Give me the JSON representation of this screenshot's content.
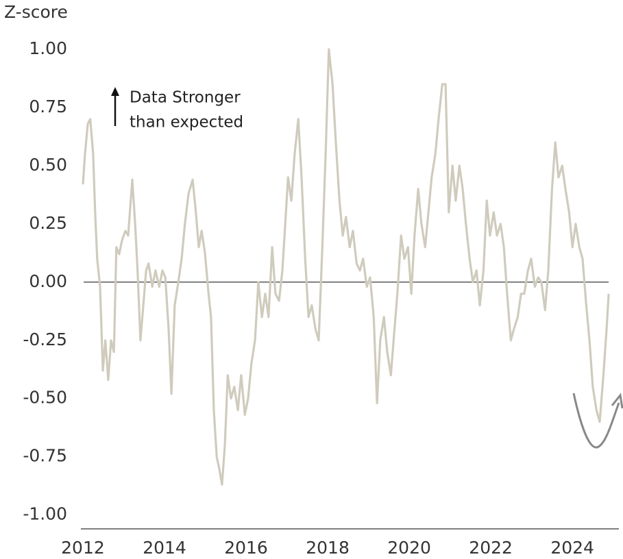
{
  "chart_data": {
    "type": "line",
    "y_label": "Z-score",
    "annotation": [
      "Data Stronger",
      "than expected"
    ],
    "xlim": [
      2011.95,
      2025.14
    ],
    "xticks": [
      2012,
      2014,
      2016,
      2018,
      2020,
      2022,
      2024
    ],
    "ylim": [
      -1.06,
      1.1
    ],
    "yticks": [
      {
        "value": 1,
        "label": "1.00"
      },
      {
        "value": 0.75,
        "label": "0.75"
      },
      {
        "value": 0.5,
        "label": "0.50"
      },
      {
        "value": 0.25,
        "label": "0.25"
      },
      {
        "value": 0,
        "label": "0.00"
      },
      {
        "value": -0.25,
        "label": "-0.25"
      },
      {
        "value": -0.5,
        "label": "-0.50"
      },
      {
        "value": -0.75,
        "label": "-0.75"
      },
      {
        "value": -1,
        "label": "-1.00"
      }
    ],
    "grid": false,
    "zero_line": true,
    "series": [
      {
        "color": "#cfcbbd",
        "x": [
          2012.0,
          2012.05,
          2012.12,
          2012.18,
          2012.25,
          2012.3,
          2012.35,
          2012.42,
          2012.49,
          2012.55,
          2012.62,
          2012.69,
          2012.76,
          2012.82,
          2012.89,
          2012.96,
          2013.04,
          2013.11,
          2013.21,
          2013.28,
          2013.34,
          2013.41,
          2013.48,
          2013.55,
          2013.61,
          2013.7,
          2013.78,
          2013.87,
          2013.95,
          2014.02,
          2014.1,
          2014.17,
          2014.25,
          2014.34,
          2014.42,
          2014.5,
          2014.59,
          2014.69,
          2014.77,
          2014.84,
          2014.91,
          2014.99,
          2015.08,
          2015.14,
          2015.21,
          2015.28,
          2015.34,
          2015.41,
          2015.48,
          2015.55,
          2015.63,
          2015.71,
          2015.8,
          2015.88,
          2015.97,
          2016.05,
          2016.13,
          2016.22,
          2016.3,
          2016.39,
          2016.47,
          2016.55,
          2016.64,
          2016.72,
          2016.81,
          2016.89,
          2016.96,
          2017.03,
          2017.11,
          2017.19,
          2017.28,
          2017.36,
          2017.45,
          2017.53,
          2017.61,
          2017.7,
          2017.78,
          2017.87,
          2017.95,
          2018.03,
          2018.12,
          2018.2,
          2018.29,
          2018.37,
          2018.45,
          2018.54,
          2018.62,
          2018.71,
          2018.79,
          2018.87,
          2018.96,
          2019.04,
          2019.13,
          2019.21,
          2019.29,
          2019.38,
          2019.46,
          2019.55,
          2019.63,
          2019.71,
          2019.8,
          2019.88,
          2019.97,
          2020.05,
          2020.13,
          2020.22,
          2020.3,
          2020.39,
          2020.47,
          2020.55,
          2020.64,
          2020.72,
          2020.81,
          2020.89,
          2020.97,
          2021.06,
          2021.14,
          2021.23,
          2021.31,
          2021.39,
          2021.48,
          2021.56,
          2021.65,
          2021.73,
          2021.82,
          2021.9,
          2021.98,
          2022.07,
          2022.15,
          2022.24,
          2022.32,
          2022.4,
          2022.49,
          2022.57,
          2022.66,
          2022.74,
          2022.82,
          2022.91,
          2022.99,
          2023.08,
          2023.16,
          2023.24,
          2023.33,
          2023.41,
          2023.5,
          2023.58,
          2023.66,
          2023.75,
          2023.83,
          2023.92,
          2024.0,
          2024.08,
          2024.17,
          2024.25,
          2024.34,
          2024.42,
          2024.5,
          2024.59,
          2024.67,
          2024.76,
          2024.84,
          2024.89
        ],
        "values": [
          0.42,
          0.55,
          0.68,
          0.7,
          0.55,
          0.3,
          0.1,
          -0.02,
          -0.38,
          -0.25,
          -0.42,
          -0.25,
          -0.3,
          0.15,
          0.12,
          0.18,
          0.22,
          0.2,
          0.44,
          0.25,
          0.05,
          -0.25,
          -0.1,
          0.05,
          0.08,
          -0.02,
          0.05,
          -0.02,
          0.05,
          0.02,
          -0.2,
          -0.48,
          -0.1,
          0.0,
          0.1,
          0.25,
          0.38,
          0.44,
          0.3,
          0.15,
          0.22,
          0.13,
          -0.05,
          -0.15,
          -0.55,
          -0.75,
          -0.8,
          -0.87,
          -0.7,
          -0.4,
          -0.5,
          -0.45,
          -0.55,
          -0.4,
          -0.57,
          -0.5,
          -0.35,
          -0.25,
          0.0,
          -0.15,
          -0.05,
          -0.15,
          0.15,
          -0.05,
          -0.08,
          0.05,
          0.25,
          0.45,
          0.35,
          0.55,
          0.7,
          0.45,
          0.1,
          -0.15,
          -0.1,
          -0.2,
          -0.25,
          0.15,
          0.55,
          1.0,
          0.85,
          0.6,
          0.35,
          0.2,
          0.28,
          0.15,
          0.22,
          0.08,
          0.05,
          0.1,
          -0.02,
          0.02,
          -0.15,
          -0.52,
          -0.25,
          -0.15,
          -0.3,
          -0.4,
          -0.22,
          -0.05,
          0.2,
          0.1,
          0.15,
          -0.05,
          0.2,
          0.4,
          0.25,
          0.15,
          0.3,
          0.45,
          0.55,
          0.7,
          0.85,
          0.85,
          0.3,
          0.5,
          0.35,
          0.5,
          0.4,
          0.25,
          0.1,
          0.0,
          0.05,
          -0.1,
          0.05,
          0.35,
          0.2,
          0.3,
          0.2,
          0.25,
          0.15,
          -0.05,
          -0.25,
          -0.2,
          -0.15,
          -0.05,
          -0.05,
          0.05,
          0.1,
          -0.02,
          0.02,
          0.0,
          -0.12,
          0.05,
          0.4,
          0.6,
          0.45,
          0.5,
          0.4,
          0.3,
          0.15,
          0.25,
          0.15,
          0.1,
          -0.1,
          -0.25,
          -0.45,
          -0.55,
          -0.6,
          -0.4,
          -0.2,
          -0.05
        ]
      }
    ]
  }
}
